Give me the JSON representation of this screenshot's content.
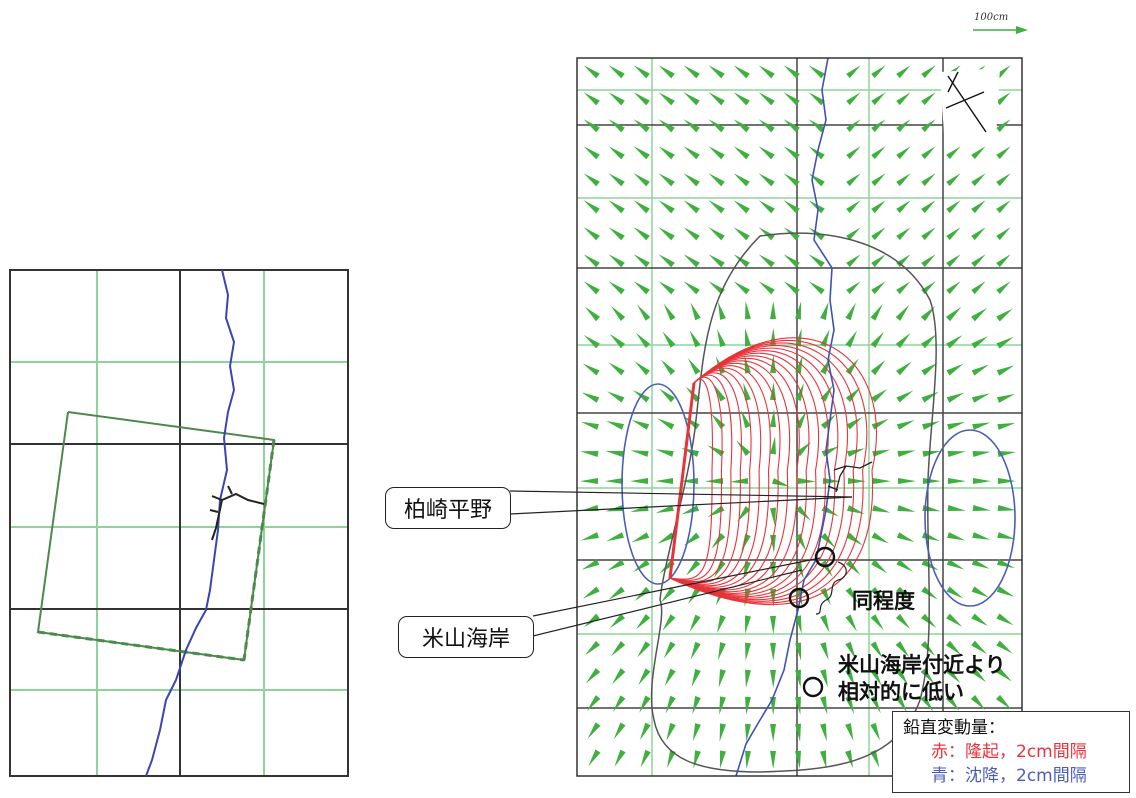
{
  "scale_label": "100cm",
  "labels": {
    "kashiwazaki_plain": "柏崎平野",
    "yoneyama_coast": "米山海岸",
    "same_level": "同程度",
    "lower_note_line1": "米山海岸付近より",
    "lower_note_line2": "相対的に低い"
  },
  "legend": {
    "title": "鉛直変動量：",
    "uplift_prefix": "赤：",
    "uplift_text": "隆起，2cm間隔",
    "subsidence_prefix": "青：",
    "subsidence_text": "沈降，2cm間隔"
  },
  "colors": {
    "uplift": "#e8333a",
    "subsidence": "#4a5fb4",
    "vector": "#3fb040",
    "coastline": "#4050b8",
    "grid_major": "#3a3a3a",
    "grid_minor": "#8fd39a"
  },
  "icons": [
    "green-arrow-vector",
    "north-arrow",
    "scale-arrow",
    "circle-marker"
  ]
}
